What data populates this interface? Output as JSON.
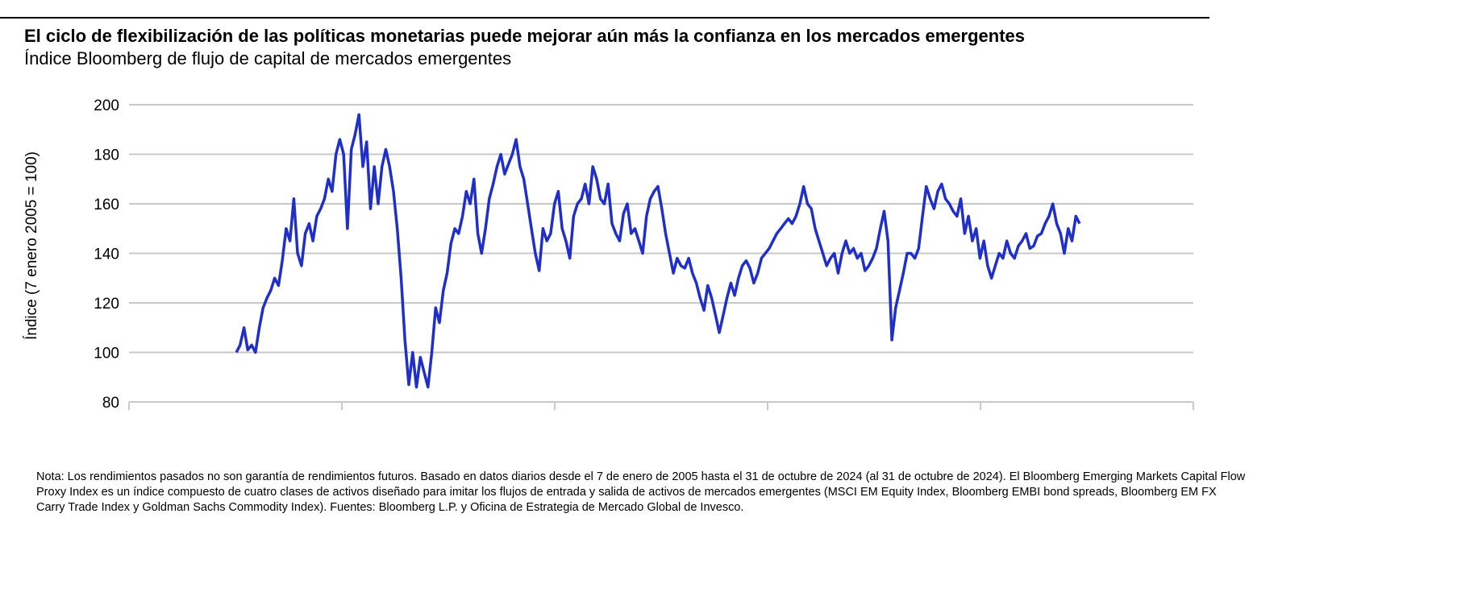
{
  "title": "El ciclo de flexibilización de las políticas monetarias puede mejorar aún más la confianza en los mercados emergentes",
  "subtitle": "Índice Bloomberg de flujo de capital de mercados emergentes",
  "note": "Nota: Los rendimientos pasados no son garantía de rendimientos futuros. Basado en datos diarios desde el 7 de enero de 2005 hasta el 31 de octubre de 2024 (al 31 de octubre de 2024). El Bloomberg Emerging Markets Capital Flow Proxy Index es un índice compuesto de cuatro clases de activos diseñado para imitar los flujos de entrada y salida de activos de mercados emergentes (MSCI EM Equity Index, Bloomberg EMBI bond spreads, Bloomberg EM FX Carry Trade Index y Goldman Sachs Commodity Index). Fuentes: Bloomberg L.P. y Oficina de Estrategia de Mercado Global de Invesco.",
  "chart_data": {
    "type": "line",
    "title": "El ciclo de flexibilización de las políticas monetarias puede mejorar aún más la confianza en los mercados emergentes",
    "subtitle": "Índice Bloomberg de flujo de capital de mercados emergentes",
    "xlabel": "",
    "ylabel": "Índice (7 enero 2005 = 100)",
    "xlim": [
      2002.5,
      2027.5
    ],
    "x_ticks": [
      2002.5,
      2007.5,
      2012.5,
      2017.5,
      2022.5,
      2027.5
    ],
    "ylim": [
      80,
      200
    ],
    "y_ticks": [
      80,
      100,
      120,
      140,
      160,
      180,
      200
    ],
    "y_tick_labels": [
      "80",
      "100",
      "120",
      "140",
      "160",
      "180",
      "200"
    ],
    "grid": true,
    "color": "#1f2fc8",
    "series": [
      {
        "name": "Bloomberg EM Capital Flow Proxy Index",
        "x_start": 2005.02,
        "x_end": 2024.83,
        "values": [
          100,
          103,
          110,
          101,
          103,
          100,
          110,
          118,
          122,
          125,
          130,
          127,
          137,
          150,
          145,
          162,
          140,
          135,
          148,
          152,
          145,
          155,
          158,
          162,
          170,
          165,
          180,
          186,
          180,
          150,
          182,
          188,
          196,
          175,
          185,
          158,
          175,
          160,
          175,
          182,
          175,
          165,
          150,
          130,
          105,
          87,
          100,
          86,
          98,
          92,
          86,
          100,
          118,
          112,
          125,
          132,
          144,
          150,
          148,
          155,
          165,
          160,
          170,
          148,
          140,
          150,
          162,
          168,
          175,
          180,
          172,
          176,
          180,
          186,
          175,
          170,
          160,
          150,
          140,
          133,
          150,
          145,
          148,
          160,
          165,
          150,
          145,
          138,
          155,
          160,
          162,
          168,
          160,
          175,
          170,
          162,
          160,
          168,
          152,
          148,
          145,
          156,
          160,
          148,
          150,
          145,
          140,
          155,
          162,
          165,
          167,
          158,
          148,
          140,
          132,
          138,
          135,
          134,
          138,
          132,
          128,
          122,
          117,
          127,
          122,
          115,
          108,
          115,
          122,
          128,
          123,
          130,
          135,
          137,
          134,
          128,
          132,
          138,
          140,
          142,
          145,
          148,
          150,
          152,
          154,
          152,
          155,
          160,
          167,
          160,
          158,
          150,
          145,
          140,
          135,
          138,
          140,
          132,
          140,
          145,
          140,
          142,
          138,
          140,
          133,
          135,
          138,
          142,
          150,
          157,
          145,
          105,
          118,
          125,
          132,
          140,
          140,
          138,
          142,
          155,
          167,
          162,
          158,
          165,
          168,
          162,
          160,
          157,
          155,
          162,
          148,
          155,
          145,
          150,
          138,
          145,
          135,
          130,
          135,
          140,
          138,
          145,
          140,
          138,
          143,
          145,
          148,
          142,
          143,
          147,
          148,
          152,
          155,
          160,
          152,
          148,
          140,
          150,
          145,
          155,
          152
        ]
      }
    ]
  }
}
